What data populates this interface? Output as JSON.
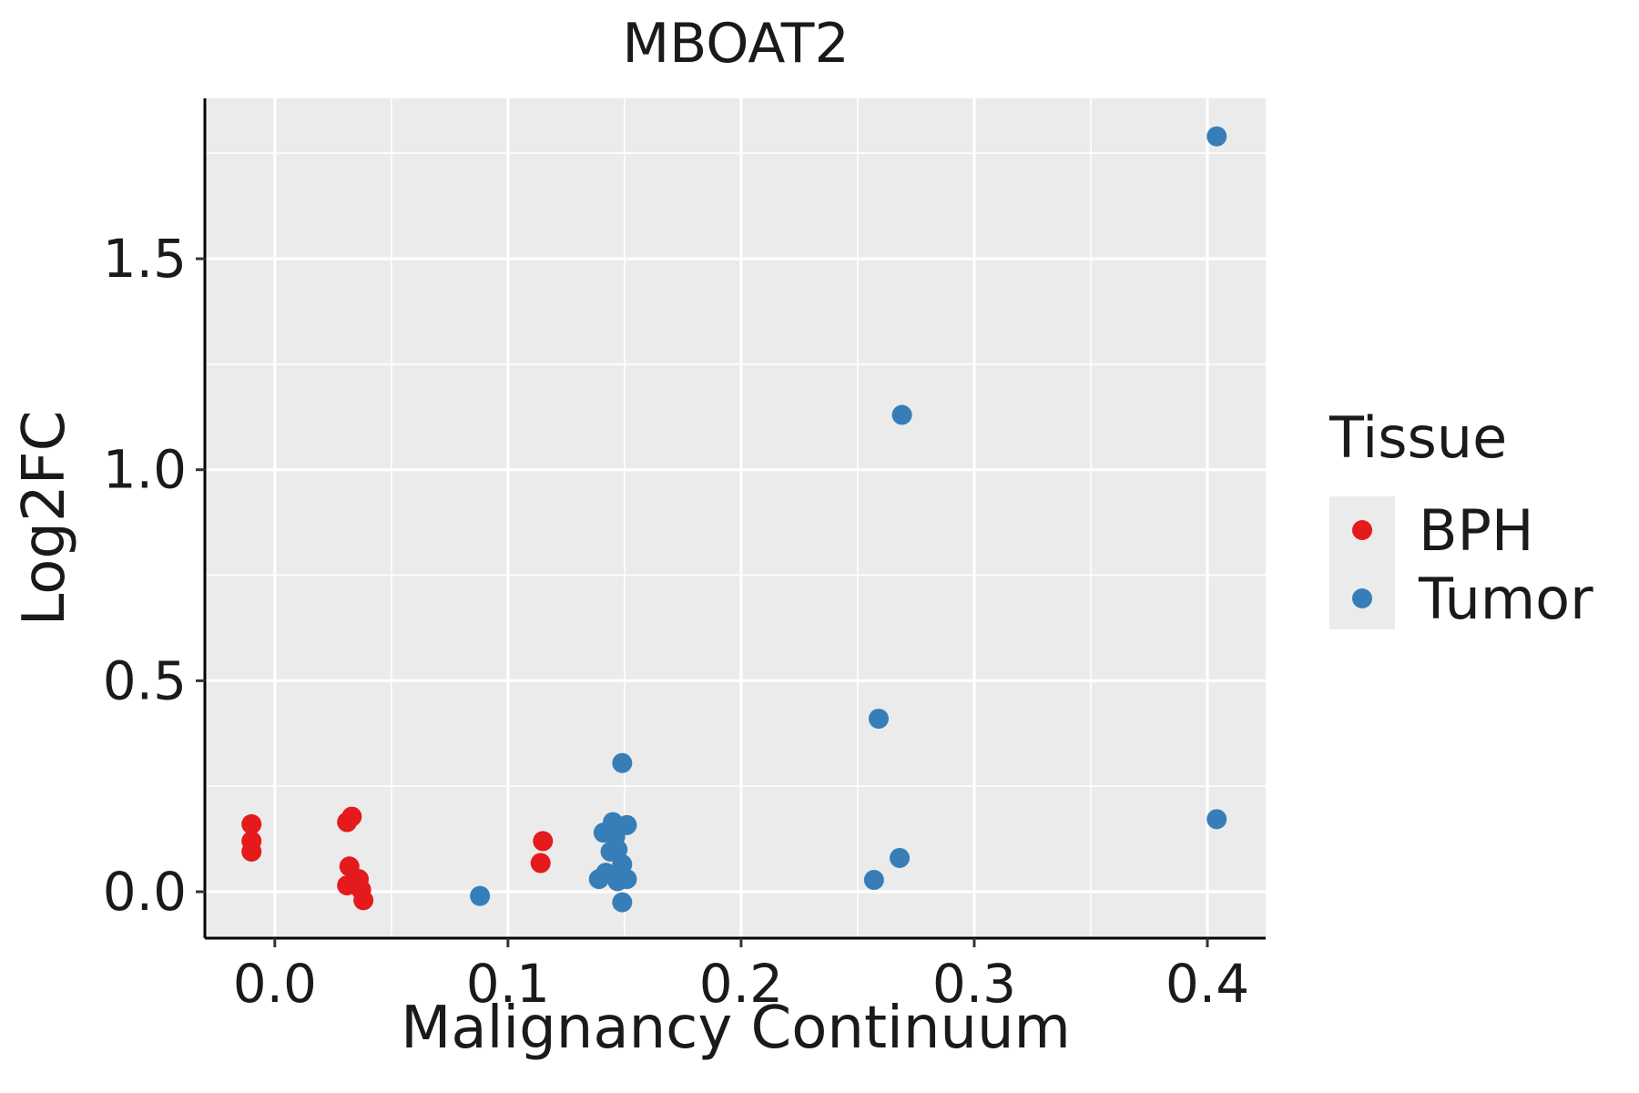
{
  "chart_data": {
    "type": "scatter",
    "title": "MBOAT2",
    "xlabel": "Malignancy Continuum",
    "ylabel": "Log2FC",
    "xlim": [
      -0.03,
      0.425
    ],
    "ylim": [
      -0.11,
      1.88
    ],
    "x_ticks": [
      0.0,
      0.1,
      0.2,
      0.3,
      0.4
    ],
    "x_tick_labels": [
      "0.0",
      "0.1",
      "0.2",
      "0.3",
      "0.4"
    ],
    "y_ticks": [
      0.0,
      0.5,
      1.0,
      1.5
    ],
    "y_tick_labels": [
      "0.0",
      "0.5",
      "1.0",
      "1.5"
    ],
    "grid": true,
    "legend": {
      "title": "Tissue",
      "position": "right",
      "entries": [
        {
          "label": "BPH",
          "color": "#E41A1C"
        },
        {
          "label": "Tumor",
          "color": "#377EB8"
        }
      ]
    },
    "series": [
      {
        "name": "BPH",
        "color": "#E41A1C",
        "points": [
          [
            -0.01,
            0.16
          ],
          [
            -0.01,
            0.12
          ],
          [
            -0.01,
            0.095
          ],
          [
            0.031,
            0.165
          ],
          [
            0.033,
            0.178
          ],
          [
            0.032,
            0.06
          ],
          [
            0.036,
            0.03
          ],
          [
            0.031,
            0.015
          ],
          [
            0.034,
            0.02
          ],
          [
            0.037,
            0.005
          ],
          [
            0.038,
            -0.02
          ],
          [
            0.115,
            0.12
          ],
          [
            0.114,
            0.068
          ]
        ]
      },
      {
        "name": "Tumor",
        "color": "#377EB8",
        "points": [
          [
            0.088,
            -0.01
          ],
          [
            0.149,
            0.305
          ],
          [
            0.145,
            0.165
          ],
          [
            0.151,
            0.158
          ],
          [
            0.141,
            0.14
          ],
          [
            0.146,
            0.13
          ],
          [
            0.144,
            0.095
          ],
          [
            0.147,
            0.1
          ],
          [
            0.149,
            0.065
          ],
          [
            0.142,
            0.045
          ],
          [
            0.146,
            0.04
          ],
          [
            0.139,
            0.03
          ],
          [
            0.151,
            0.03
          ],
          [
            0.147,
            0.025
          ],
          [
            0.149,
            -0.025
          ],
          [
            0.259,
            0.41
          ],
          [
            0.269,
            1.13
          ],
          [
            0.268,
            0.08
          ],
          [
            0.257,
            0.028
          ],
          [
            0.404,
            1.79
          ],
          [
            0.404,
            0.172
          ]
        ]
      }
    ]
  }
}
